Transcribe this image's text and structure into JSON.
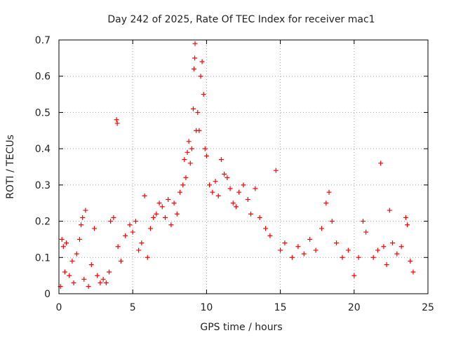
{
  "chart_data": {
    "type": "scatter",
    "title": "Day 242 of 2025, Rate Of TEC Index for receiver mac1",
    "xlabel": "GPS time / hours",
    "ylabel": "ROTI / TECUs",
    "xlim": [
      0,
      25
    ],
    "ylim": [
      0,
      0.7
    ],
    "x_ticks": [
      0,
      5,
      10,
      15,
      20,
      25
    ],
    "y_ticks": [
      0,
      0.1,
      0.2,
      0.3,
      0.4,
      0.5,
      0.6,
      0.7
    ],
    "x_tick_labels": [
      "0",
      "5",
      "10",
      "15",
      "20",
      "25"
    ],
    "y_tick_labels": [
      "0",
      "0.1",
      "0.2",
      "0.3",
      "0.4",
      "0.5",
      "0.6",
      "0.7"
    ],
    "grid": true,
    "marker": "+",
    "color": "#ff0000",
    "series": [
      {
        "values": [
          [
            0.1,
            0.02
          ],
          [
            0.2,
            0.15
          ],
          [
            0.3,
            0.13
          ],
          [
            0.4,
            0.06
          ],
          [
            0.5,
            0.14
          ],
          [
            0.7,
            0.05
          ],
          [
            0.9,
            0.09
          ],
          [
            1.0,
            0.03
          ],
          [
            1.2,
            0.11
          ],
          [
            1.4,
            0.15
          ],
          [
            1.5,
            0.19
          ],
          [
            1.6,
            0.21
          ],
          [
            1.7,
            0.04
          ],
          [
            1.8,
            0.23
          ],
          [
            2.0,
            0.02
          ],
          [
            2.2,
            0.08
          ],
          [
            2.4,
            0.18
          ],
          [
            2.6,
            0.05
          ],
          [
            2.8,
            0.03
          ],
          [
            3.0,
            0.04
          ],
          [
            3.2,
            0.03
          ],
          [
            3.4,
            0.06
          ],
          [
            3.5,
            0.2
          ],
          [
            3.7,
            0.21
          ],
          [
            3.9,
            0.48
          ],
          [
            3.95,
            0.47
          ],
          [
            4.0,
            0.13
          ],
          [
            4.2,
            0.09
          ],
          [
            4.5,
            0.16
          ],
          [
            4.8,
            0.19
          ],
          [
            5.0,
            0.17
          ],
          [
            5.2,
            0.2
          ],
          [
            5.4,
            0.12
          ],
          [
            5.6,
            0.14
          ],
          [
            5.8,
            0.27
          ],
          [
            6.0,
            0.1
          ],
          [
            6.2,
            0.18
          ],
          [
            6.4,
            0.21
          ],
          [
            6.6,
            0.22
          ],
          [
            6.8,
            0.25
          ],
          [
            7.0,
            0.24
          ],
          [
            7.2,
            0.21
          ],
          [
            7.4,
            0.26
          ],
          [
            7.6,
            0.19
          ],
          [
            7.8,
            0.25
          ],
          [
            8.0,
            0.22
          ],
          [
            8.2,
            0.28
          ],
          [
            8.4,
            0.3
          ],
          [
            8.5,
            0.37
          ],
          [
            8.6,
            0.32
          ],
          [
            8.7,
            0.39
          ],
          [
            8.8,
            0.42
          ],
          [
            8.9,
            0.36
          ],
          [
            9.0,
            0.4
          ],
          [
            9.1,
            0.51
          ],
          [
            9.15,
            0.62
          ],
          [
            9.2,
            0.65
          ],
          [
            9.22,
            0.69
          ],
          [
            9.3,
            0.45
          ],
          [
            9.4,
            0.5
          ],
          [
            9.5,
            0.45
          ],
          [
            9.6,
            0.6
          ],
          [
            9.7,
            0.64
          ],
          [
            9.8,
            0.55
          ],
          [
            9.9,
            0.4
          ],
          [
            10.0,
            0.38
          ],
          [
            10.2,
            0.3
          ],
          [
            10.4,
            0.28
          ],
          [
            10.6,
            0.31
          ],
          [
            10.8,
            0.27
          ],
          [
            11.0,
            0.37
          ],
          [
            11.2,
            0.33
          ],
          [
            11.4,
            0.32
          ],
          [
            11.6,
            0.29
          ],
          [
            11.8,
            0.25
          ],
          [
            12.0,
            0.24
          ],
          [
            12.2,
            0.28
          ],
          [
            12.5,
            0.3
          ],
          [
            12.8,
            0.26
          ],
          [
            13.0,
            0.22
          ],
          [
            13.3,
            0.29
          ],
          [
            13.6,
            0.21
          ],
          [
            14.0,
            0.18
          ],
          [
            14.3,
            0.16
          ],
          [
            14.7,
            0.34
          ],
          [
            15.0,
            0.12
          ],
          [
            15.3,
            0.14
          ],
          [
            15.8,
            0.1
          ],
          [
            16.2,
            0.13
          ],
          [
            16.6,
            0.11
          ],
          [
            17.0,
            0.15
          ],
          [
            17.4,
            0.12
          ],
          [
            17.8,
            0.18
          ],
          [
            18.1,
            0.25
          ],
          [
            18.3,
            0.28
          ],
          [
            18.5,
            0.2
          ],
          [
            18.8,
            0.14
          ],
          [
            19.2,
            0.1
          ],
          [
            19.6,
            0.12
          ],
          [
            20.0,
            0.05
          ],
          [
            20.3,
            0.1
          ],
          [
            20.6,
            0.2
          ],
          [
            20.8,
            0.17
          ],
          [
            21.3,
            0.1
          ],
          [
            21.6,
            0.12
          ],
          [
            21.8,
            0.36
          ],
          [
            22.0,
            0.13
          ],
          [
            22.2,
            0.08
          ],
          [
            22.4,
            0.23
          ],
          [
            22.6,
            0.14
          ],
          [
            22.9,
            0.11
          ],
          [
            23.2,
            0.13
          ],
          [
            23.5,
            0.21
          ],
          [
            23.6,
            0.19
          ],
          [
            23.8,
            0.09
          ],
          [
            24.0,
            0.06
          ]
        ]
      }
    ]
  }
}
